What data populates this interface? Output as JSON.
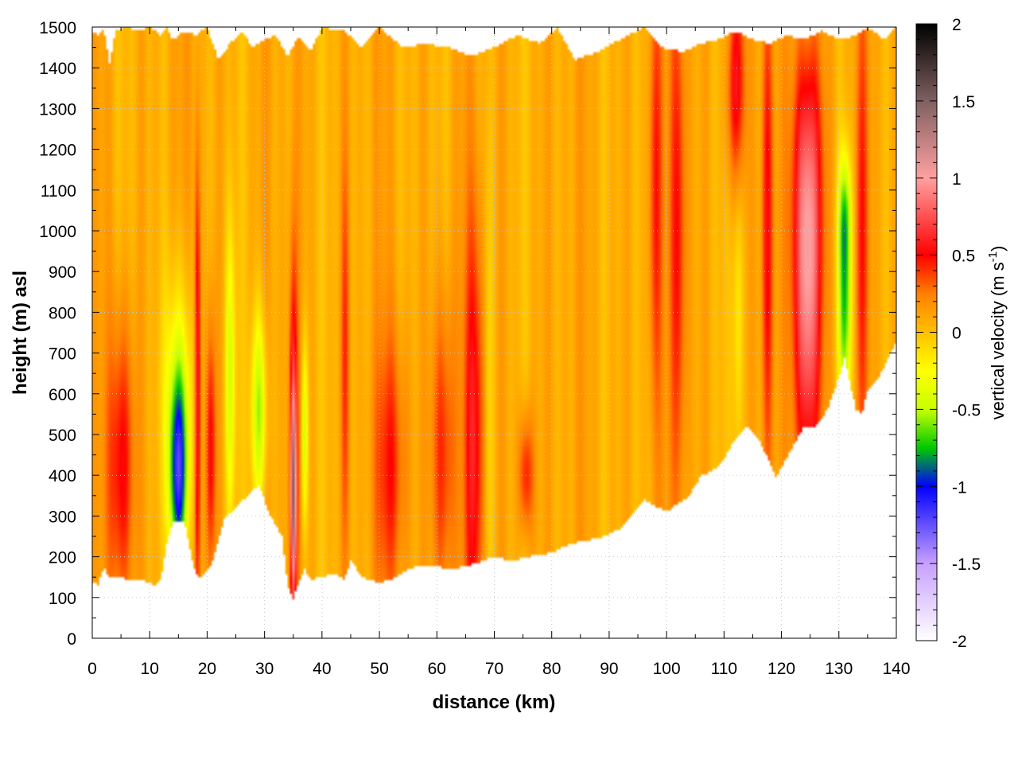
{
  "chart_data": {
    "type": "heatmap",
    "xlabel": "distance (km)",
    "ylabel": "height (m) asl",
    "xlim": [
      0,
      140
    ],
    "ylim": [
      0,
      1500
    ],
    "x_ticks": [
      0,
      10,
      20,
      30,
      40,
      50,
      60,
      70,
      80,
      90,
      100,
      110,
      120,
      130,
      140
    ],
    "y_ticks": [
      0,
      100,
      200,
      300,
      400,
      500,
      600,
      700,
      800,
      900,
      1000,
      1100,
      1200,
      1300,
      1400,
      1500
    ],
    "grid": true,
    "colorbar": {
      "label_prefix": "vertical velocity (m s",
      "label_sup": "-1",
      "label_suffix": ")",
      "range": [
        -2,
        2
      ],
      "ticks": [
        "-2",
        "-1.5",
        "-1",
        "-0.5",
        "0",
        "0.5",
        "1",
        "1.5",
        "2"
      ],
      "tick_values": [
        -2,
        -1.5,
        -1,
        -0.5,
        0,
        0.5,
        1,
        1.5,
        2
      ],
      "colormap": [
        {
          "v": -2.0,
          "color": "#ffffff"
        },
        {
          "v": -1.5,
          "color": "#c8a0ff"
        },
        {
          "v": -1.0,
          "color": "#0000ff"
        },
        {
          "v": -0.75,
          "color": "#00c800"
        },
        {
          "v": -0.5,
          "color": "#c8ff00"
        },
        {
          "v": -0.25,
          "color": "#ffff00"
        },
        {
          "v": 0.0,
          "color": "#ffc000"
        },
        {
          "v": 0.25,
          "color": "#ff8000"
        },
        {
          "v": 0.5,
          "color": "#ff0000"
        },
        {
          "v": 1.0,
          "color": "#ffa0a0"
        },
        {
          "v": 1.5,
          "color": "#806060"
        },
        {
          "v": 2.0,
          "color": "#000000"
        }
      ]
    },
    "base_height": [
      [
        0,
        140
      ],
      [
        1,
        130
      ],
      [
        2,
        175
      ],
      [
        3,
        150
      ],
      [
        5,
        150
      ],
      [
        7,
        140
      ],
      [
        9,
        140
      ],
      [
        11,
        130
      ],
      [
        12,
        150
      ],
      [
        13,
        230
      ],
      [
        14,
        285
      ],
      [
        16,
        285
      ],
      [
        17,
        220
      ],
      [
        18,
        155
      ],
      [
        19,
        150
      ],
      [
        20,
        165
      ],
      [
        21,
        190
      ],
      [
        22,
        240
      ],
      [
        23,
        295
      ],
      [
        25,
        320
      ],
      [
        27,
        350
      ],
      [
        29,
        375
      ],
      [
        31,
        300
      ],
      [
        33,
        250
      ],
      [
        34,
        130
      ],
      [
        35,
        95
      ],
      [
        36,
        140
      ],
      [
        37,
        170
      ],
      [
        38,
        145
      ],
      [
        40,
        150
      ],
      [
        42,
        160
      ],
      [
        44,
        145
      ],
      [
        45,
        190
      ],
      [
        47,
        150
      ],
      [
        50,
        135
      ],
      [
        52,
        145
      ],
      [
        54,
        160
      ],
      [
        56,
        175
      ],
      [
        60,
        175
      ],
      [
        63,
        170
      ],
      [
        67,
        185
      ],
      [
        70,
        200
      ],
      [
        73,
        190
      ],
      [
        76,
        200
      ],
      [
        80,
        210
      ],
      [
        83,
        230
      ],
      [
        86,
        240
      ],
      [
        89,
        250
      ],
      [
        92,
        270
      ],
      [
        94,
        300
      ],
      [
        96,
        340
      ],
      [
        98,
        325
      ],
      [
        100,
        310
      ],
      [
        102,
        330
      ],
      [
        104,
        350
      ],
      [
        106,
        400
      ],
      [
        108,
        410
      ],
      [
        110,
        440
      ],
      [
        112,
        490
      ],
      [
        114,
        520
      ],
      [
        116,
        490
      ],
      [
        118,
        430
      ],
      [
        119,
        395
      ],
      [
        120,
        420
      ],
      [
        122,
        470
      ],
      [
        124,
        520
      ],
      [
        126,
        520
      ],
      [
        128,
        560
      ],
      [
        130,
        640
      ],
      [
        131,
        690
      ],
      [
        132,
        620
      ],
      [
        133,
        560
      ],
      [
        134,
        550
      ],
      [
        135,
        610
      ],
      [
        137,
        640
      ],
      [
        139,
        700
      ],
      [
        140,
        730
      ]
    ],
    "top_height": [
      [
        0,
        1490
      ],
      [
        1,
        1480
      ],
      [
        2,
        1500
      ],
      [
        3,
        1410
      ],
      [
        4,
        1490
      ],
      [
        6,
        1500
      ],
      [
        8,
        1490
      ],
      [
        10,
        1500
      ],
      [
        12,
        1480
      ],
      [
        13,
        1500
      ],
      [
        14,
        1470
      ],
      [
        16,
        1490
      ],
      [
        18,
        1480
      ],
      [
        20,
        1500
      ],
      [
        22,
        1420
      ],
      [
        24,
        1460
      ],
      [
        26,
        1490
      ],
      [
        28,
        1450
      ],
      [
        30,
        1470
      ],
      [
        32,
        1480
      ],
      [
        34,
        1430
      ],
      [
        36,
        1480
      ],
      [
        38,
        1440
      ],
      [
        40,
        1500
      ],
      [
        44,
        1490
      ],
      [
        47,
        1450
      ],
      [
        50,
        1500
      ],
      [
        54,
        1450
      ],
      [
        58,
        1460
      ],
      [
        62,
        1450
      ],
      [
        66,
        1430
      ],
      [
        70,
        1450
      ],
      [
        74,
        1480
      ],
      [
        78,
        1460
      ],
      [
        81,
        1500
      ],
      [
        84,
        1420
      ],
      [
        88,
        1440
      ],
      [
        92,
        1470
      ],
      [
        96,
        1500
      ],
      [
        99,
        1450
      ],
      [
        103,
        1440
      ],
      [
        106,
        1460
      ],
      [
        109,
        1470
      ],
      [
        112,
        1490
      ],
      [
        115,
        1470
      ],
      [
        118,
        1460
      ],
      [
        121,
        1480
      ],
      [
        124,
        1470
      ],
      [
        127,
        1490
      ],
      [
        130,
        1470
      ],
      [
        133,
        1480
      ],
      [
        135,
        1500
      ],
      [
        138,
        1470
      ],
      [
        140,
        1500
      ]
    ],
    "features": [
      {
        "x": 5,
        "z": 420,
        "sx": 1.6,
        "sz": 260,
        "v": 0.5
      },
      {
        "x": 15,
        "z": 390,
        "sx": 1.1,
        "sz": 170,
        "v": -1.05
      },
      {
        "x": 15,
        "z": 600,
        "sx": 1.8,
        "sz": 220,
        "v": -0.45
      },
      {
        "x": 18.3,
        "z": 600,
        "sx": 0.35,
        "sz": 400,
        "v": 0.7
      },
      {
        "x": 20.6,
        "z": 460,
        "sx": 0.6,
        "sz": 230,
        "v": 0.5
      },
      {
        "x": 24,
        "z": 640,
        "sx": 0.6,
        "sz": 260,
        "v": -0.5
      },
      {
        "x": 29,
        "z": 560,
        "sx": 0.9,
        "sz": 170,
        "v": -0.65
      },
      {
        "x": 35,
        "z": 340,
        "sx": 0.35,
        "sz": 170,
        "v": 0.95
      },
      {
        "x": 35,
        "z": 520,
        "sx": 0.5,
        "sz": 320,
        "v": 0.55
      },
      {
        "x": 37,
        "z": 500,
        "sx": 0.4,
        "sz": 160,
        "v": -0.5
      },
      {
        "x": 44,
        "z": 700,
        "sx": 0.5,
        "sz": 350,
        "v": 0.3
      },
      {
        "x": 52,
        "z": 420,
        "sx": 2.0,
        "sz": 230,
        "v": 0.35
      },
      {
        "x": 61,
        "z": 450,
        "sx": 1.4,
        "sz": 280,
        "v": 0.4
      },
      {
        "x": 66.5,
        "z": 480,
        "sx": 1.2,
        "sz": 400,
        "v": 0.5
      },
      {
        "x": 75.5,
        "z": 400,
        "sx": 0.9,
        "sz": 110,
        "v": 0.45
      },
      {
        "x": 69,
        "z": 600,
        "sx": 0.6,
        "sz": 500,
        "v": -0.2
      },
      {
        "x": 98,
        "z": 1100,
        "sx": 0.8,
        "sz": 400,
        "v": 0.35
      },
      {
        "x": 102,
        "z": 1000,
        "sx": 1.0,
        "sz": 500,
        "v": 0.4
      },
      {
        "x": 112,
        "z": 1350,
        "sx": 1.1,
        "sz": 180,
        "v": 0.5
      },
      {
        "x": 112.5,
        "z": 800,
        "sx": 0.6,
        "sz": 300,
        "v": -0.3
      },
      {
        "x": 117.5,
        "z": 1000,
        "sx": 0.7,
        "sz": 450,
        "v": 0.45
      },
      {
        "x": 124.5,
        "z": 800,
        "sx": 1.6,
        "sz": 330,
        "v": 0.8
      },
      {
        "x": 124.5,
        "z": 1150,
        "sx": 1.8,
        "sz": 250,
        "v": 0.45
      },
      {
        "x": 131,
        "z": 830,
        "sx": 0.8,
        "sz": 200,
        "v": -0.8
      },
      {
        "x": 131,
        "z": 1050,
        "sx": 0.8,
        "sz": 100,
        "v": -0.4
      },
      {
        "x": 134,
        "z": 1000,
        "sx": 0.8,
        "sz": 400,
        "v": 0.3
      }
    ]
  }
}
